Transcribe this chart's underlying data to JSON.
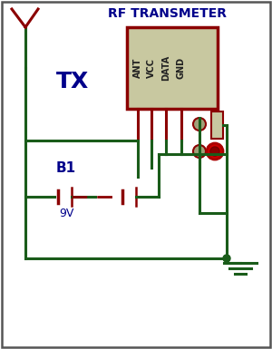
{
  "bg_color": "#ffffff",
  "border_color": "#555555",
  "wire_color": "#1a5c1a",
  "component_color": "#8b0000",
  "title": "RF TRANSMETER",
  "title_color": "#00008b",
  "tx_label": "TX",
  "tx_color": "#00008b",
  "module_bg": "#c8c8a0",
  "module_border": "#8b0000",
  "module_pins": [
    "ANT",
    "VCC",
    "DATA",
    "GND"
  ],
  "battery_label": "B1",
  "battery_voltage": "9V",
  "bat_label_color": "#00008b",
  "volt_color": "#00008b",
  "led_color": "#cc0000",
  "sw_circle_color": "#a0a078",
  "res_color": "#c8c8a0"
}
